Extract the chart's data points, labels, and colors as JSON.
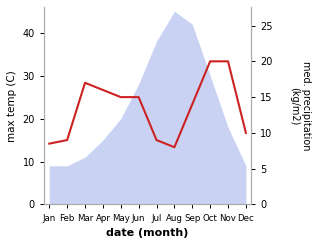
{
  "months": [
    "Jan",
    "Feb",
    "Mar",
    "Apr",
    "May",
    "Jun",
    "Jul",
    "Aug",
    "Sep",
    "Oct",
    "Nov",
    "Dec"
  ],
  "temp": [
    9,
    9,
    11,
    15,
    20,
    28,
    38,
    45,
    42,
    30,
    18,
    9
  ],
  "precip": [
    8.5,
    9,
    17,
    16,
    15,
    15,
    9,
    8,
    14,
    20,
    20,
    10
  ],
  "temp_ylim": [
    0,
    46
  ],
  "precip_ylim": [
    0,
    27.6
  ],
  "temp_yticks": [
    0,
    10,
    20,
    30,
    40
  ],
  "precip_yticks": [
    0,
    5,
    10,
    15,
    20,
    25
  ],
  "fill_color": "#b8c4f0",
  "fill_alpha": 0.75,
  "line_color": "#cc2222",
  "line_width": 1.5,
  "xlabel": "date (month)",
  "ylabel_left": "max temp (C)",
  "ylabel_right": "med. precipitation\n(kg/m2)",
  "bg_color": "#ffffff",
  "spine_color": "#aaaaaa"
}
